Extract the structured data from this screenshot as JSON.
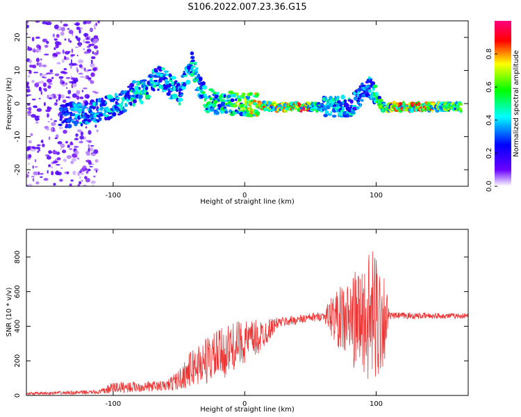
{
  "title": "S106.2022.007.23.36.G15",
  "chart_data": [
    {
      "type": "heatmap",
      "xlabel": "Height of straight line (km)",
      "ylabel": "Frequency (Hz)",
      "xlim": [
        -166,
        170
      ],
      "ylim": [
        -25,
        25
      ],
      "x_ticks": [
        -100,
        0,
        100
      ],
      "y_ticks": [
        -20,
        -10,
        0,
        10,
        20
      ],
      "colorbar": {
        "label": "Normalized spectral amplitude",
        "range": [
          0.0,
          1.0
        ],
        "ticks": [
          0.0,
          0.2,
          0.4,
          0.6,
          0.8
        ],
        "colormap": [
          "#ffffff",
          "#6a00ff",
          "#0000ff",
          "#00ffff",
          "#00ff00",
          "#ffff00",
          "#ff0000",
          "#ff0080"
        ]
      },
      "ridge": [
        {
          "x": -140,
          "y": -4,
          "v": 0.3
        },
        {
          "x": -125,
          "y": -3,
          "v": 0.45
        },
        {
          "x": -110,
          "y": -2,
          "v": 0.4
        },
        {
          "x": -95,
          "y": 0,
          "v": 0.45
        },
        {
          "x": -85,
          "y": 3,
          "v": 0.5
        },
        {
          "x": -75,
          "y": 4,
          "v": 0.5
        },
        {
          "x": -65,
          "y": 8,
          "v": 0.45
        },
        {
          "x": -50,
          "y": 3,
          "v": 0.45
        },
        {
          "x": -40,
          "y": 12,
          "v": 0.5
        },
        {
          "x": -30,
          "y": 1,
          "v": 0.5
        },
        {
          "x": -10,
          "y": 0,
          "v": 0.6
        },
        {
          "x": 0,
          "y": 0,
          "v": 0.75
        },
        {
          "x": 20,
          "y": -1,
          "v": 0.8
        },
        {
          "x": 45,
          "y": -1,
          "v": 0.9
        },
        {
          "x": 60,
          "y": -1,
          "v": 0.5
        },
        {
          "x": 80,
          "y": -1,
          "v": 0.45
        },
        {
          "x": 95,
          "y": 5,
          "v": 0.4
        },
        {
          "x": 105,
          "y": -1,
          "v": 0.7
        },
        {
          "x": 130,
          "y": -1,
          "v": 0.9
        },
        {
          "x": 165,
          "y": -1,
          "v": 0.6
        }
      ]
    },
    {
      "type": "line",
      "xlabel": "Height of straight line (km)",
      "ylabel": "SNR (10 * v/v)",
      "xlim": [
        -166,
        170
      ],
      "ylim": [
        0,
        960
      ],
      "x_ticks": [
        -100,
        0,
        100
      ],
      "y_ticks": [
        0,
        200,
        400,
        600,
        800
      ],
      "color": "#ee3333",
      "envelope": [
        {
          "x": -166,
          "mean": 10,
          "amp": 8
        },
        {
          "x": -110,
          "mean": 20,
          "amp": 12
        },
        {
          "x": -100,
          "mean": 45,
          "amp": 35
        },
        {
          "x": -80,
          "mean": 50,
          "amp": 30
        },
        {
          "x": -60,
          "mean": 55,
          "amp": 30
        },
        {
          "x": -50,
          "mean": 90,
          "amp": 60
        },
        {
          "x": -40,
          "mean": 160,
          "amp": 110
        },
        {
          "x": -30,
          "mean": 200,
          "amp": 140
        },
        {
          "x": -15,
          "mean": 250,
          "amp": 150
        },
        {
          "x": -5,
          "mean": 300,
          "amp": 130
        },
        {
          "x": 10,
          "mean": 330,
          "amp": 110
        },
        {
          "x": 25,
          "mean": 420,
          "amp": 30
        },
        {
          "x": 60,
          "mean": 460,
          "amp": 25
        },
        {
          "x": 66,
          "mean": 460,
          "amp": 120
        },
        {
          "x": 78,
          "mean": 430,
          "amp": 240
        },
        {
          "x": 90,
          "mean": 440,
          "amp": 330
        },
        {
          "x": 100,
          "mean": 450,
          "amp": 420
        },
        {
          "x": 107,
          "mean": 460,
          "amp": 250
        },
        {
          "x": 110,
          "mean": 460,
          "amp": 20
        },
        {
          "x": 170,
          "mean": 460,
          "amp": 15
        }
      ]
    }
  ]
}
